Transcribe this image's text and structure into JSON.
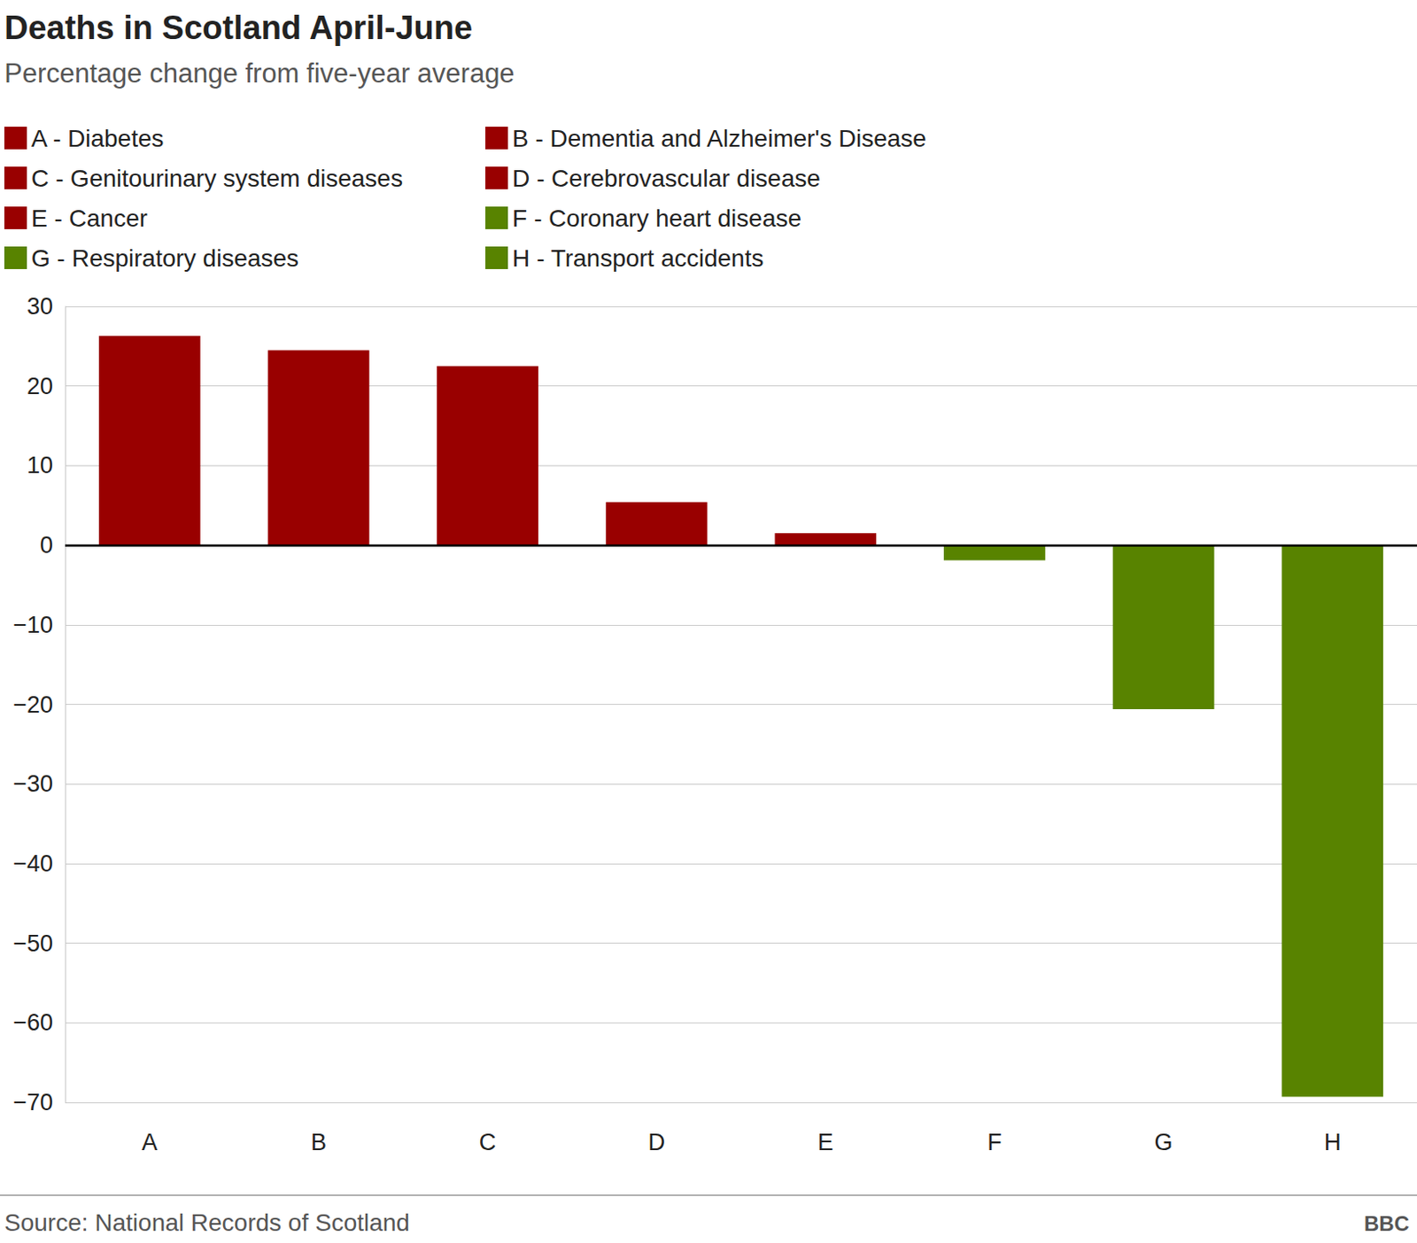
{
  "chart_data": {
    "type": "bar",
    "title": "Deaths in Scotland April-June",
    "subtitle": "Percentage change from five-year average",
    "source": "Source: National Records of Scotland",
    "credit": "BBC",
    "categories": [
      "A",
      "B",
      "C",
      "D",
      "E",
      "F",
      "G",
      "H"
    ],
    "series": [
      {
        "name": "A - Diabetes",
        "color": "#990000",
        "values": [
          26.3,
          null,
          null,
          null,
          null,
          null,
          null,
          null
        ]
      },
      {
        "name": "B - Dementia and Alzheimer's Disease",
        "color": "#990000",
        "values": [
          null,
          24.5,
          null,
          null,
          null,
          null,
          null,
          null
        ]
      },
      {
        "name": "C - Genitourinary system diseases",
        "color": "#990000",
        "values": [
          null,
          null,
          22.5,
          null,
          null,
          null,
          null,
          null
        ]
      },
      {
        "name": "D - Cerebrovascular disease",
        "color": "#990000",
        "values": [
          null,
          null,
          null,
          5.4,
          null,
          null,
          null,
          null
        ]
      },
      {
        "name": "E - Cancer",
        "color": "#990000",
        "values": [
          null,
          null,
          null,
          null,
          1.5,
          null,
          null,
          null
        ]
      },
      {
        "name": "F - Coronary heart disease",
        "color": "#588300",
        "values": [
          null,
          null,
          null,
          null,
          null,
          -1.9,
          null,
          null
        ]
      },
      {
        "name": "G - Respiratory diseases",
        "color": "#588300",
        "values": [
          null,
          null,
          null,
          null,
          null,
          null,
          -20.6,
          null
        ]
      },
      {
        "name": "H - Transport accidents",
        "color": "#588300",
        "values": [
          null,
          null,
          null,
          null,
          null,
          null,
          null,
          -69.3
        ]
      }
    ],
    "ylim": [
      -70,
      30
    ],
    "yticks": [
      {
        "value": -70,
        "label": "−70"
      },
      {
        "value": -60,
        "label": "−60"
      },
      {
        "value": -50,
        "label": "−50"
      },
      {
        "value": -40,
        "label": "−40"
      },
      {
        "value": -30,
        "label": "−30"
      },
      {
        "value": -20,
        "label": "−20"
      },
      {
        "value": -10,
        "label": "−10"
      },
      0,
      10,
      20,
      30
    ],
    "grid": true,
    "legend": "top-left"
  }
}
